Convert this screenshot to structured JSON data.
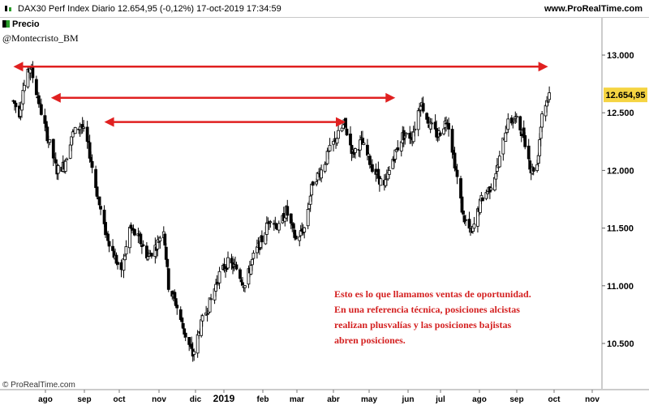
{
  "header": {
    "title": "DAX30 Perf Index Diario 12.654,95 (-0,12%) 17-oct-2019 17:34:59",
    "brand": "www.ProRealTime.com"
  },
  "legend": {
    "label": "Precio"
  },
  "author": "@Montecristo_BM",
  "footer_brand": "© ProRealTime.com",
  "annotation": "Esto es lo que llamamos ventas de oportunidad. En una referencia técnica, posiciones alcistas realizan plusvalías y las posiciones bajistas abren posiciones.",
  "colors": {
    "candle": "#000000",
    "arrow": "#e02020",
    "price_tag": "#f5d442",
    "legend_up": "#2a9d2a"
  },
  "chart_data": {
    "type": "candlestick",
    "title": "DAX30 Perf Index Diario",
    "y_axis": {
      "position": "right",
      "ticks": [
        13000,
        12500,
        12000,
        11500,
        11000,
        10500
      ],
      "tick_labels": [
        "13.000",
        "12.500",
        "12.000",
        "11.500",
        "11.000",
        "10.500"
      ],
      "ylim": [
        10250,
        13250
      ]
    },
    "x_axis": {
      "tick_labels": [
        "ago",
        "sep",
        "oct",
        "nov",
        "dic",
        "2019",
        "feb",
        "mar",
        "abr",
        "may",
        "jun",
        "jul",
        "ago",
        "sep",
        "oct",
        "nov"
      ],
      "bold_label": "2019"
    },
    "last_price": {
      "value": 12654.95,
      "label": "12.654,95"
    },
    "price_path": [
      [
        "2018-08-01",
        12600
      ],
      [
        "2018-08-06",
        12500
      ],
      [
        "2018-08-09",
        12700
      ],
      [
        "2018-08-15",
        12900
      ],
      [
        "2018-08-23",
        12550
      ],
      [
        "2018-08-29",
        12300
      ],
      [
        "2018-09-06",
        12000
      ],
      [
        "2018-09-12",
        12050
      ],
      [
        "2018-09-18",
        12300
      ],
      [
        "2018-09-26",
        12400
      ],
      [
        "2018-10-02",
        12200
      ],
      [
        "2018-10-10",
        11750
      ],
      [
        "2018-10-15",
        11500
      ],
      [
        "2018-10-22",
        11300
      ],
      [
        "2018-10-29",
        11100
      ],
      [
        "2018-11-05",
        11500
      ],
      [
        "2018-11-13",
        11400
      ],
      [
        "2018-11-20",
        11250
      ],
      [
        "2018-11-27",
        11350
      ],
      [
        "2018-12-03",
        11500
      ],
      [
        "2018-12-07",
        11000
      ],
      [
        "2018-12-13",
        10850
      ],
      [
        "2018-12-20",
        10600
      ],
      [
        "2018-12-27",
        10400
      ],
      [
        "2019-01-04",
        10700
      ],
      [
        "2019-01-10",
        10850
      ],
      [
        "2019-01-18",
        11100
      ],
      [
        "2019-01-25",
        11200
      ],
      [
        "2019-02-01",
        11150
      ],
      [
        "2019-02-08",
        11000
      ],
      [
        "2019-02-15",
        11250
      ],
      [
        "2019-02-22",
        11400
      ],
      [
        "2019-03-01",
        11600
      ],
      [
        "2019-03-08",
        11500
      ],
      [
        "2019-03-14",
        11650
      ],
      [
        "2019-03-22",
        11400
      ],
      [
        "2019-03-29",
        11500
      ],
      [
        "2019-04-05",
        11900
      ],
      [
        "2019-04-12",
        12000
      ],
      [
        "2019-04-20",
        12200
      ],
      [
        "2019-05-01",
        12400
      ],
      [
        "2019-05-08",
        12150
      ],
      [
        "2019-05-15",
        12250
      ],
      [
        "2019-05-23",
        12050
      ],
      [
        "2019-06-03",
        11850
      ],
      [
        "2019-06-10",
        12100
      ],
      [
        "2019-06-18",
        12300
      ],
      [
        "2019-06-26",
        12300
      ],
      [
        "2019-07-03",
        12600
      ],
      [
        "2019-07-10",
        12400
      ],
      [
        "2019-07-17",
        12300
      ],
      [
        "2019-07-25",
        12450
      ],
      [
        "2019-08-01",
        12000
      ],
      [
        "2019-08-07",
        11600
      ],
      [
        "2019-08-14",
        11450
      ],
      [
        "2019-08-22",
        11750
      ],
      [
        "2019-08-29",
        11850
      ],
      [
        "2019-09-05",
        12050
      ],
      [
        "2019-09-12",
        12400
      ],
      [
        "2019-09-19",
        12450
      ],
      [
        "2019-09-26",
        12300
      ],
      [
        "2019-10-02",
        12000
      ],
      [
        "2019-10-07",
        12050
      ],
      [
        "2019-10-11",
        12500
      ],
      [
        "2019-10-17",
        12655
      ]
    ],
    "annotations": [
      {
        "type": "double-arrow",
        "price": 12900,
        "from": "2018-08-01",
        "to": "2019-10-16"
      },
      {
        "type": "double-arrow",
        "price": 12630,
        "from": "2018-09-01",
        "to": "2019-06-12"
      },
      {
        "type": "double-arrow",
        "price": 12420,
        "from": "2018-10-15",
        "to": "2019-05-02"
      }
    ]
  }
}
